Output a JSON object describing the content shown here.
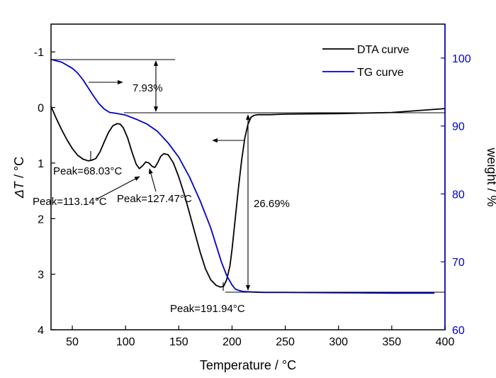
{
  "chart_data": {
    "type": "line",
    "xlabel": "Temperature / °C",
    "ylabel_left": {
      "main": "ΔT",
      "unit": " / °C"
    },
    "ylabel_right": "weight / %",
    "xlim": [
      30,
      400
    ],
    "ylim_left": [
      4,
      -1.5
    ],
    "ylim_right": [
      60,
      105
    ],
    "x_ticks": [
      50,
      100,
      150,
      200,
      250,
      300,
      350,
      400
    ],
    "y_left_ticks": [
      -1,
      0,
      1,
      2,
      3,
      4
    ],
    "y_left_tick_labels": [
      "-1",
      "0",
      "1",
      "2",
      "3",
      "4"
    ],
    "y_right_ticks": [
      60,
      70,
      80,
      90,
      100
    ],
    "legend": {
      "position": "top-right",
      "entries": [
        "DTA curve",
        "TG curve"
      ]
    },
    "colors": {
      "dta": "#000000",
      "tg": "#0000cc",
      "right_axis": "#0000cc"
    },
    "series": [
      {
        "name": "DTA curve",
        "axis": "left",
        "x": [
          30,
          35,
          40,
          45,
          50,
          55,
          60,
          65,
          68,
          72,
          76,
          80,
          84,
          88,
          92,
          95,
          98,
          102,
          106,
          110,
          113,
          116,
          119,
          122,
          125,
          127.5,
          130,
          133,
          136,
          140,
          145,
          150,
          155,
          160,
          165,
          170,
          175,
          180,
          185,
          189,
          192,
          195,
          198,
          200,
          203,
          206,
          209,
          212,
          215,
          218,
          221,
          224,
          228,
          235,
          250,
          300,
          350,
          400
        ],
        "y": [
          -0.02,
          0.2,
          0.4,
          0.58,
          0.74,
          0.86,
          0.93,
          0.96,
          0.95,
          0.92,
          0.8,
          0.62,
          0.45,
          0.33,
          0.29,
          0.3,
          0.37,
          0.55,
          0.8,
          1.02,
          1.1,
          1.05,
          0.98,
          1.0,
          1.06,
          1.08,
          1.0,
          0.88,
          0.83,
          0.85,
          1.0,
          1.25,
          1.55,
          1.9,
          2.25,
          2.6,
          2.9,
          3.1,
          3.2,
          3.23,
          3.22,
          3.1,
          2.85,
          2.55,
          2.0,
          1.45,
          0.95,
          0.55,
          0.3,
          0.17,
          0.14,
          0.13,
          0.13,
          0.13,
          0.12,
          0.11,
          0.09,
          0.02
        ]
      },
      {
        "name": "TG curve",
        "axis": "right",
        "x": [
          30,
          40,
          50,
          55,
          60,
          65,
          70,
          75,
          80,
          85,
          90,
          100,
          110,
          120,
          130,
          140,
          150,
          160,
          170,
          180,
          185,
          190,
          195,
          200,
          203,
          206,
          210,
          215,
          220,
          230,
          250,
          300,
          350,
          390
        ],
        "y": [
          99.8,
          99.4,
          98.5,
          97.8,
          96.8,
          95.6,
          94.4,
          93.3,
          92.5,
          92.0,
          91.9,
          91.6,
          91.0,
          90.3,
          89.2,
          87.5,
          85.4,
          82.5,
          79.0,
          75.0,
          72.5,
          70.0,
          68.0,
          66.6,
          66.0,
          65.8,
          65.65,
          65.6,
          65.55,
          65.5,
          65.5,
          65.45,
          65.4,
          65.4
        ]
      }
    ],
    "annotations": {
      "peak1": "Peak=68.03°C",
      "peak2": "Peak=113.14°C",
      "peak3": "Peak=127.47°C",
      "peak4": "Peak=191.94°C",
      "loss1": "7.93%",
      "loss2": "26.69%"
    }
  }
}
